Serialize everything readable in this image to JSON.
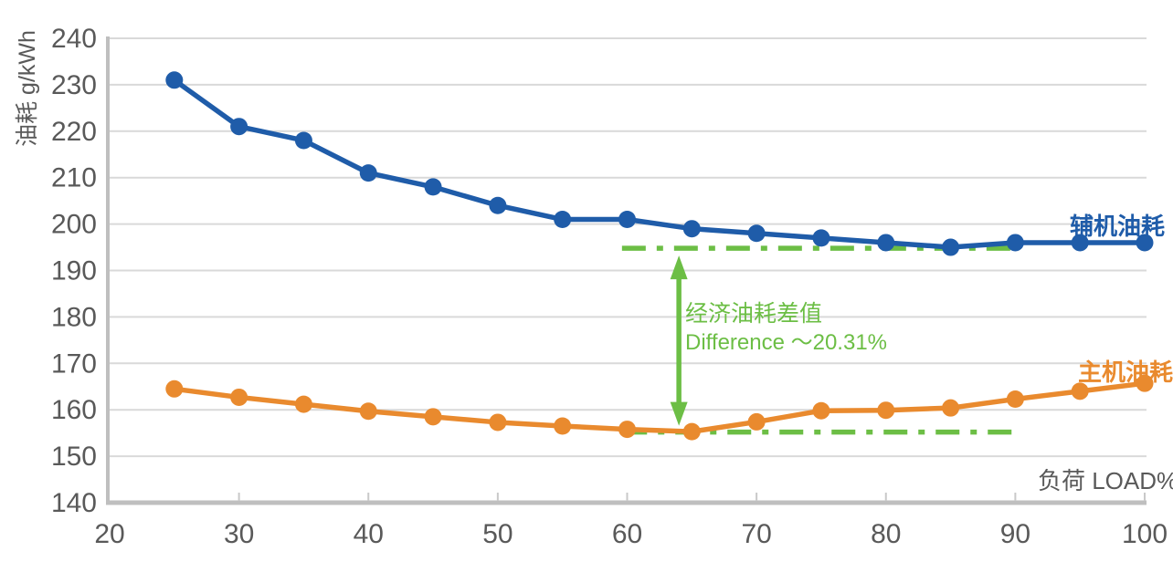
{
  "chart_data": {
    "type": "line",
    "title": "",
    "ylabel": "油耗 g/kWh",
    "xlabel": "负荷 LOAD%",
    "xlim": [
      20,
      100
    ],
    "ylim": [
      140,
      240
    ],
    "x_ticks": [
      20,
      30,
      40,
      50,
      60,
      70,
      80,
      90,
      100
    ],
    "y_ticks": [
      140,
      150,
      160,
      170,
      180,
      190,
      200,
      210,
      220,
      230,
      240
    ],
    "grid": true,
    "legend_position": "inline-labels-at-line-end",
    "x": [
      25,
      30,
      35,
      40,
      45,
      50,
      55,
      60,
      65,
      70,
      75,
      80,
      85,
      90,
      95,
      100
    ],
    "series": [
      {
        "name": "辅机油耗",
        "color": "#1F5CA9",
        "values": [
          231,
          221,
          218,
          211,
          208,
          204,
          201,
          201,
          199,
          198,
          197,
          196,
          195,
          196,
          196,
          196
        ]
      },
      {
        "name": "主机油耗",
        "color": "#E98A2E",
        "values": [
          164.5,
          162.7,
          161.2,
          159.7,
          158.5,
          157.3,
          156.5,
          155.8,
          155.3,
          157.4,
          159.8,
          159.9,
          160.4,
          162.3,
          164.0,
          165.7
        ]
      }
    ],
    "annotations": {
      "color": "#6CBE45",
      "upper_line": {
        "value": 194.8,
        "x_from": 59.6,
        "x_to": 90.3,
        "style": "dash-dot"
      },
      "lower_line": {
        "value": 155.2,
        "x_from": 59.7,
        "x_to": 90.2,
        "style": "dash-dot"
      },
      "arrow": {
        "x": 64,
        "from_value": 194.8,
        "to_value": 155.2,
        "double_headed": true
      },
      "label_line1": "经济油耗差值",
      "label_line2": "Difference ～20.31%"
    }
  }
}
